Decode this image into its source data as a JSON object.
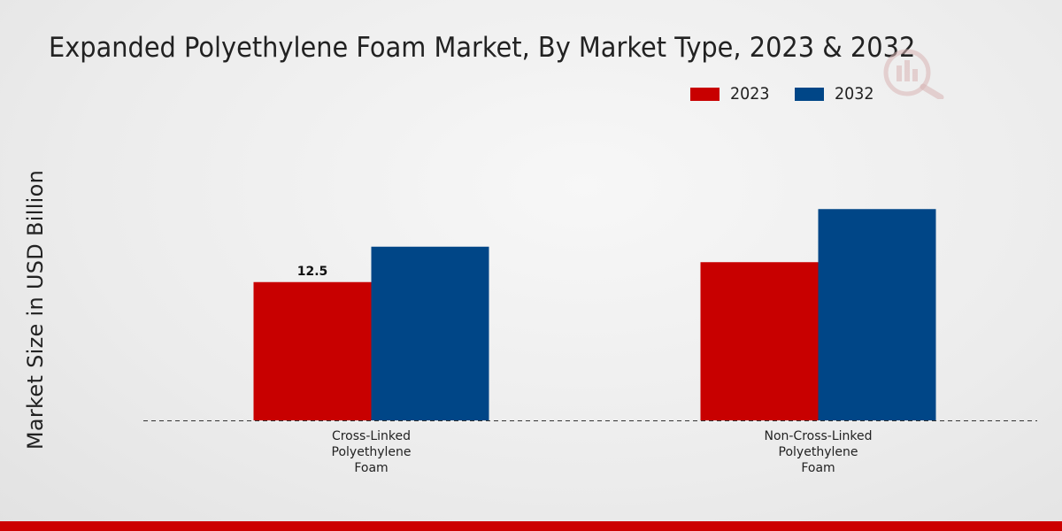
{
  "chart_data": {
    "type": "bar",
    "title": "Expanded Polyethylene Foam Market, By Market Type, 2023 & 2032",
    "ylabel": "Market Size in USD Billion",
    "xlabel": "",
    "categories": [
      "Cross-Linked Polyethylene Foam",
      "Non-Cross-Linked Polyethylene Foam"
    ],
    "category_lines": [
      [
        "Cross-Linked",
        "Polyethylene",
        "Foam"
      ],
      [
        "Non-Cross-Linked",
        "Polyethylene",
        "Foam"
      ]
    ],
    "series": [
      {
        "name": "2023",
        "color": "#c80000",
        "values": [
          12.5,
          14.3
        ]
      },
      {
        "name": "2032",
        "color": "#004687",
        "values": [
          15.7,
          19.1
        ]
      }
    ],
    "data_labels": [
      {
        "series": 0,
        "index": 0,
        "text": "12.5"
      }
    ],
    "ylim": [
      0,
      30
    ],
    "grid": false,
    "legend_position": "top-right",
    "baseline_style": "dashed"
  },
  "colors": {
    "footer_bar": "#cc0000",
    "watermark": "#d8a8a8"
  },
  "icons": {
    "watermark": "logo-watermark-icon"
  }
}
